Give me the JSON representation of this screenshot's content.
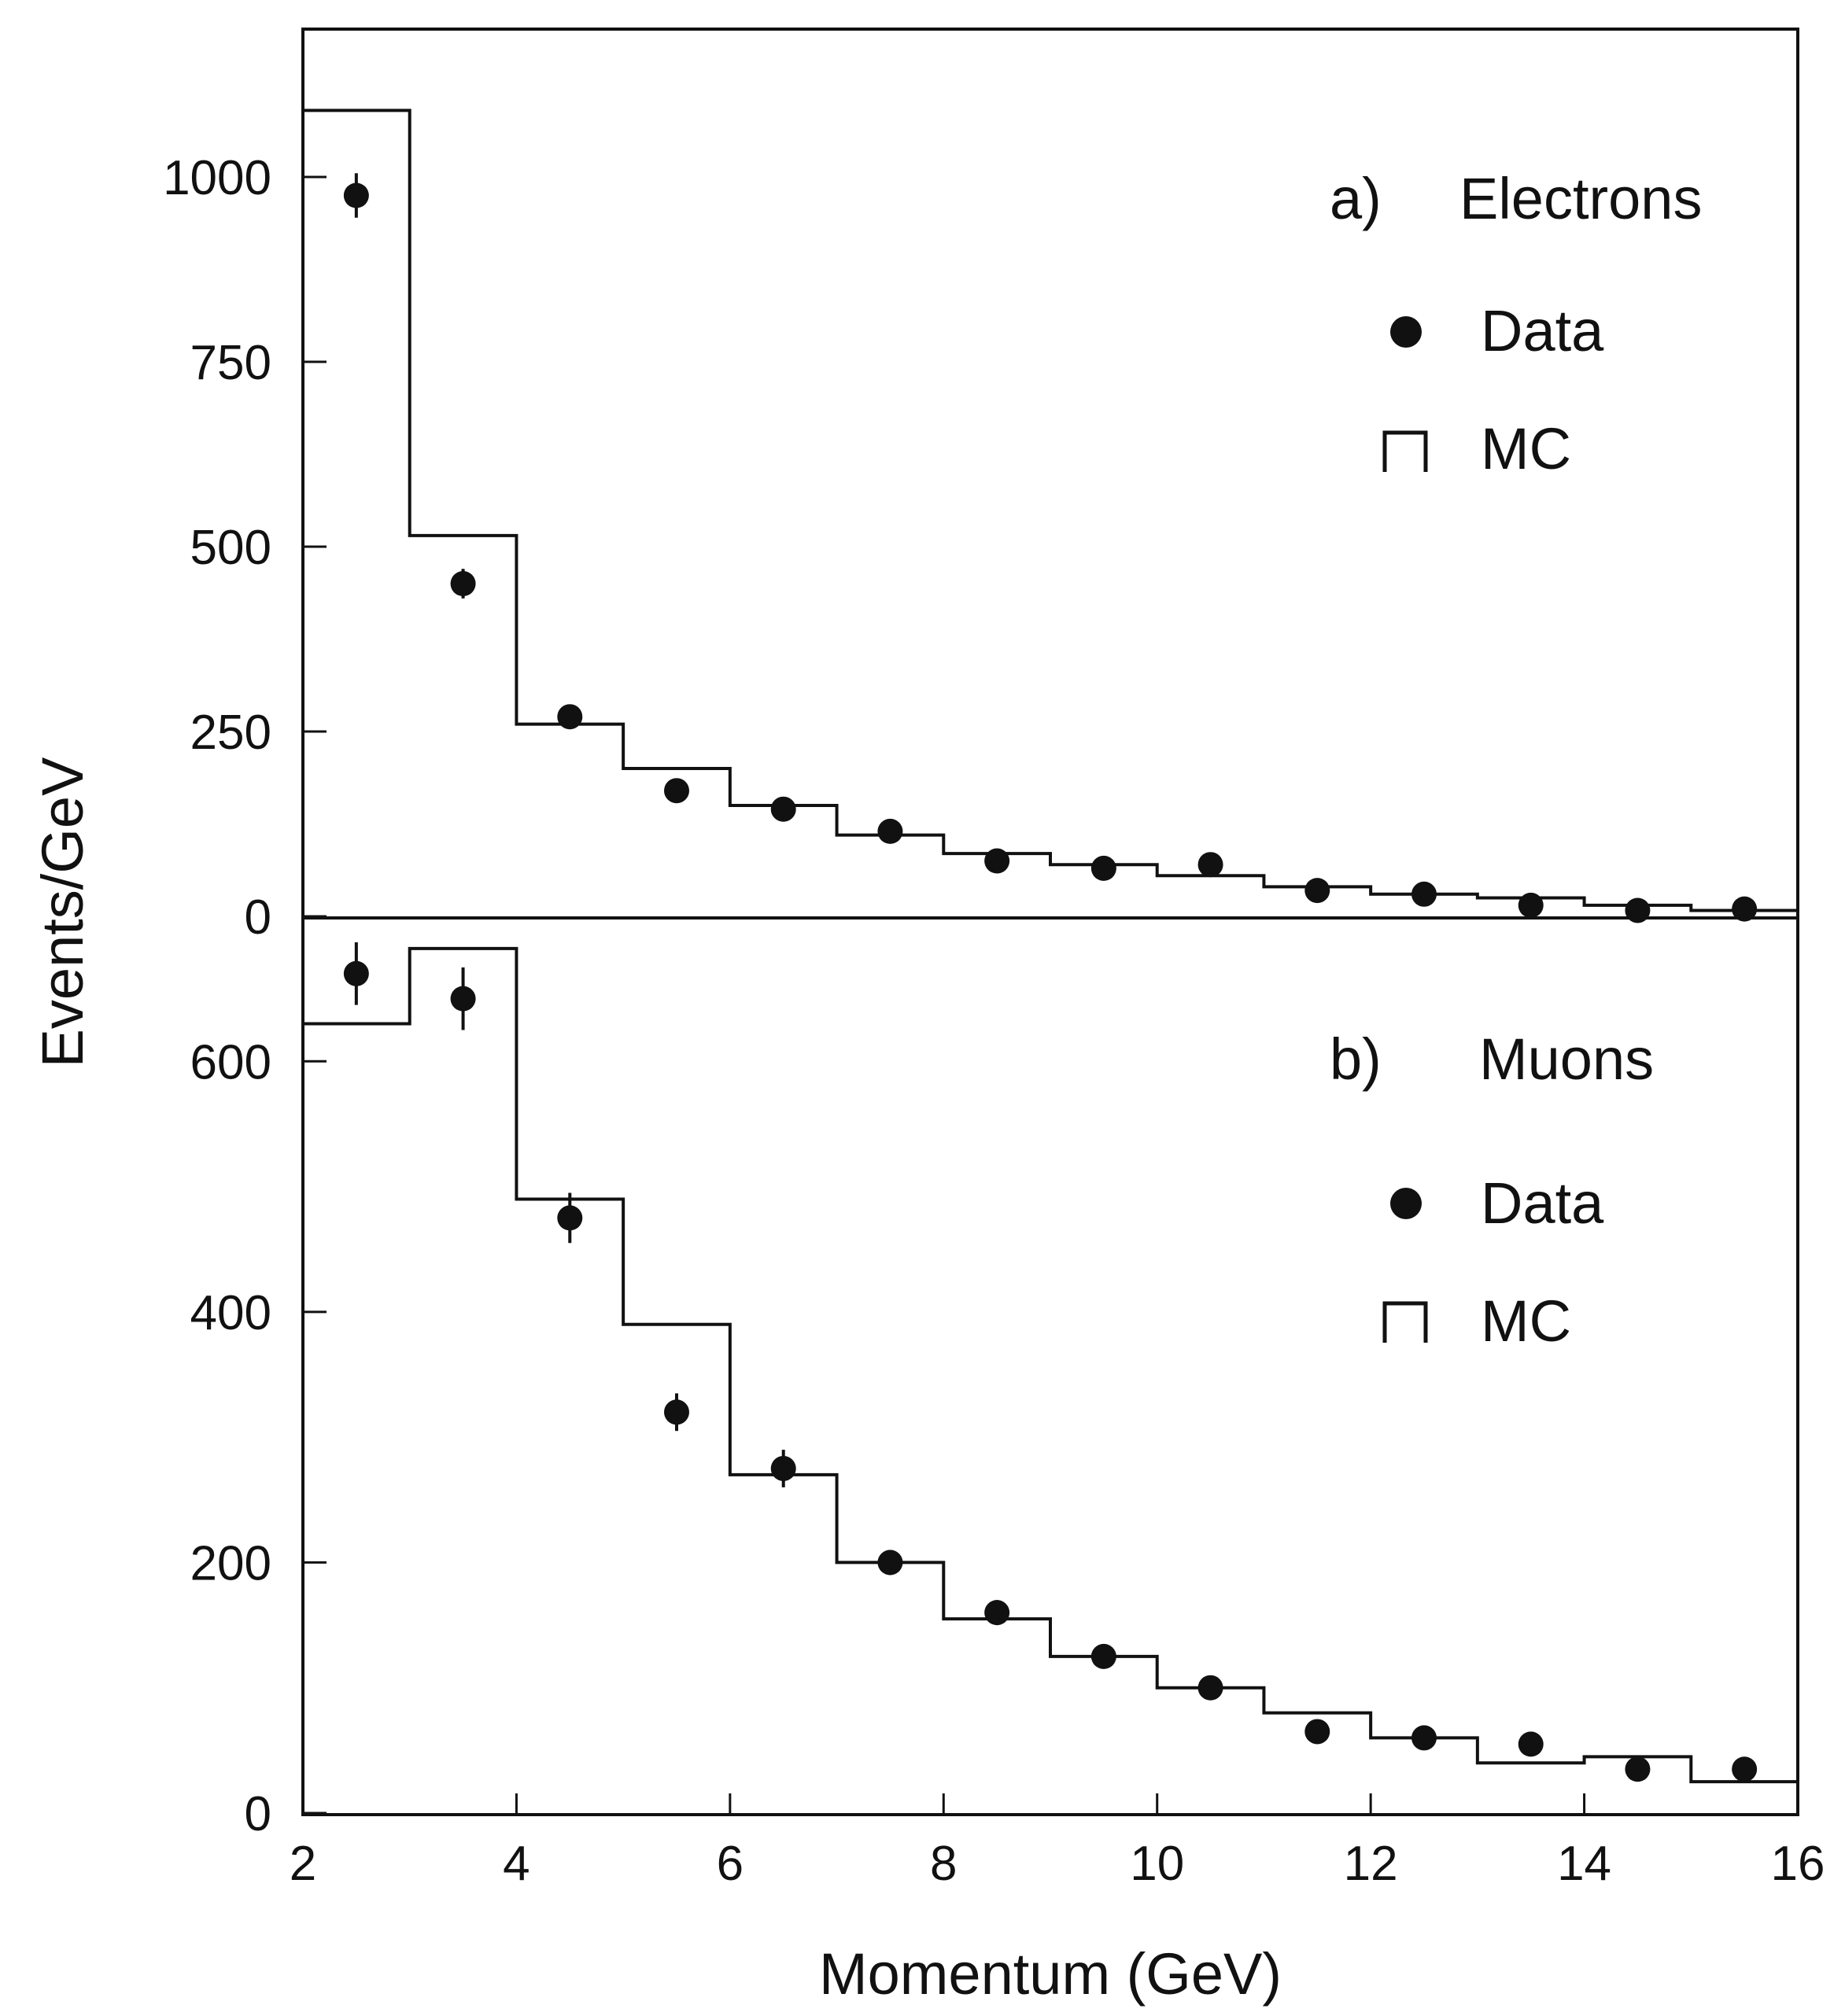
{
  "chart_data": [
    {
      "type": "histogram",
      "panel_label": "a)",
      "panel_title": "Electrons",
      "xlabel": "Momentum (GeV)",
      "ylabel": "Events/GeV",
      "xlim": [
        2,
        16
      ],
      "ylim": [
        0,
        1000
      ],
      "xticks": [
        2,
        4,
        6,
        8,
        10,
        12,
        14,
        16
      ],
      "yticks": [
        0,
        250,
        500,
        750,
        1000
      ],
      "legend_placement": "top-right",
      "legend": [
        {
          "marker": "filled-circle",
          "label": "Data"
        },
        {
          "marker": "step-line",
          "label": "MC"
        }
      ],
      "bin_edges": [
        2,
        3,
        4,
        5,
        6,
        7,
        8,
        9,
        10,
        11,
        12,
        13,
        14,
        15,
        16
      ],
      "series": [
        {
          "name": "MC",
          "style": "step",
          "values": [
            1090,
            515,
            260,
            200,
            150,
            110,
            85,
            70,
            55,
            40,
            30,
            25,
            15,
            8
          ]
        },
        {
          "name": "Data",
          "style": "points-with-errors",
          "x": [
            2.5,
            3.5,
            4.5,
            5.5,
            6.5,
            7.5,
            8.5,
            9.5,
            10.5,
            11.5,
            12.5,
            13.5,
            14.5,
            15.5
          ],
          "values": [
            975,
            450,
            270,
            170,
            145,
            115,
            75,
            65,
            70,
            35,
            30,
            15,
            8,
            10
          ],
          "errors": [
            30,
            20,
            15,
            12,
            10,
            10,
            8,
            8,
            8,
            6,
            6,
            5,
            4,
            4
          ]
        }
      ]
    },
    {
      "type": "histogram",
      "panel_label": "b)",
      "panel_title": "Muons",
      "xlabel": "Momentum (GeV)",
      "ylabel": "Events/GeV",
      "xlim": [
        2,
        16
      ],
      "ylim": [
        0,
        700
      ],
      "xticks": [
        2,
        4,
        6,
        8,
        10,
        12,
        14,
        16
      ],
      "yticks": [
        0,
        200,
        400,
        600
      ],
      "legend_placement": "top-right",
      "legend": [
        {
          "marker": "filled-circle",
          "label": "Data"
        },
        {
          "marker": "step-line",
          "label": "MC"
        }
      ],
      "bin_edges": [
        2,
        3,
        4,
        5,
        6,
        7,
        8,
        9,
        10,
        11,
        12,
        13,
        14,
        15,
        16
      ],
      "series": [
        {
          "name": "MC",
          "style": "step",
          "values": [
            630,
            690,
            490,
            390,
            270,
            200,
            155,
            125,
            100,
            80,
            60,
            40,
            45,
            25
          ]
        },
        {
          "name": "Data",
          "style": "points-with-errors",
          "x": [
            2.5,
            3.5,
            4.5,
            5.5,
            6.5,
            7.5,
            8.5,
            9.5,
            10.5,
            11.5,
            12.5,
            13.5,
            14.5,
            15.5
          ],
          "values": [
            670,
            650,
            475,
            320,
            275,
            200,
            160,
            125,
            100,
            65,
            60,
            55,
            35,
            35
          ],
          "errors": [
            25,
            25,
            20,
            15,
            15,
            10,
            10,
            8,
            8,
            7,
            6,
            6,
            5,
            5
          ]
        }
      ]
    }
  ]
}
